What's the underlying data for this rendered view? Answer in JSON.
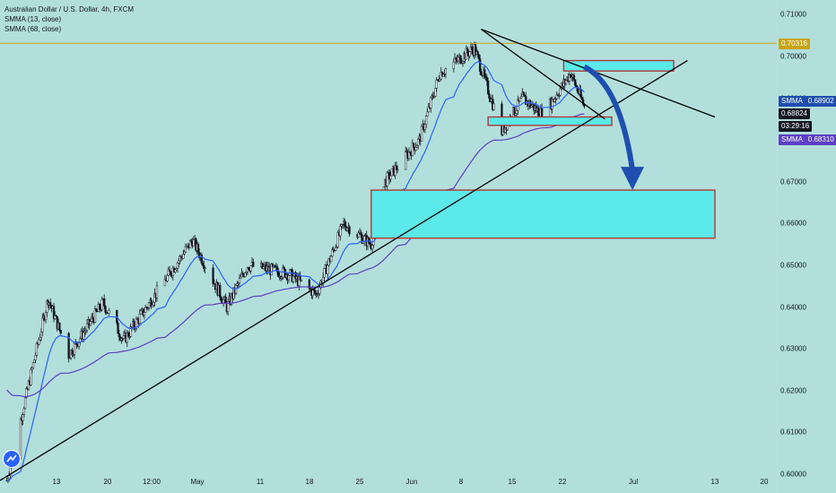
{
  "legend": {
    "symbol": "Australian Dollar / U.S. Dollar, 4h, FXCM",
    "ma1": "SMMA (13, close)",
    "ma2": "SMMA (68, close)"
  },
  "price_axis": {
    "ticks": [
      "0.71000",
      "0.70000",
      "0.69000",
      "0.68000",
      "0.67000",
      "0.66000",
      "0.65000",
      "0.64000",
      "0.63000",
      "0.62000",
      "0.61000",
      "0.60000"
    ],
    "tick_values": [
      0.71,
      0.7,
      0.69,
      0.68,
      0.67,
      0.66,
      0.65,
      0.64,
      0.63,
      0.62,
      0.61,
      0.6
    ]
  },
  "date_axis": {
    "labels": [
      "13",
      "20",
      "12:00",
      "May",
      "11",
      "18",
      "25",
      "Jun",
      "8",
      "15",
      "22",
      "Jul",
      "13",
      "20"
    ]
  },
  "badges": {
    "horizontal_level": "0.70316",
    "smma13_label": "SMMA",
    "smma13_value": "0.68902",
    "last_price": "0.68824",
    "countdown": "03:29:16",
    "smma68_label": "SMMA",
    "smma68_value": "0.68310"
  },
  "colors": {
    "background": "#b2dfdb",
    "candle": "#131722",
    "smma13": "#2962ff",
    "smma68": "#5b3fc4",
    "level_line": "#c8a415",
    "zone_fill": "#5ce9e9",
    "zone_border": "#b03a3a",
    "arrow": "#1e4fb0"
  },
  "chart_data": {
    "type": "candlestick",
    "series": [
      {
        "name": "SMMA (13, close)",
        "color": "#2962ff"
      },
      {
        "name": "SMMA (68, close)",
        "color": "#5b3fc4"
      }
    ],
    "price_range": [
      0.5955,
      0.7135
    ],
    "horizontal_level": 0.70316,
    "last_price": 0.68824,
    "smma13_last": 0.68902,
    "smma68_last": 0.6831,
    "key_closes": [
      {
        "x": "Apr 3",
        "price": 0.5985
      },
      {
        "x": "Apr 9",
        "price": 0.642
      },
      {
        "x": "Apr 12",
        "price": 0.6285
      },
      {
        "x": "Apr 17",
        "price": 0.641
      },
      {
        "x": "Apr 20",
        "price": 0.632
      },
      {
        "x": "Apr 30",
        "price": 0.656
      },
      {
        "x": "May 5",
        "price": 0.64
      },
      {
        "x": "May 8",
        "price": 0.65
      },
      {
        "x": "May 14",
        "price": 0.648
      },
      {
        "x": "May 18",
        "price": 0.643
      },
      {
        "x": "May 22",
        "price": 0.66
      },
      {
        "x": "May 26",
        "price": 0.655
      },
      {
        "x": "May 28",
        "price": 0.67
      },
      {
        "x": "Jun 2",
        "price": 0.68
      },
      {
        "x": "Jun 5",
        "price": 0.696
      },
      {
        "x": "Jun 10",
        "price": 0.702
      },
      {
        "x": "Jun 14",
        "price": 0.682
      },
      {
        "x": "Jun 17",
        "price": 0.69
      },
      {
        "x": "Jun 20",
        "price": 0.686
      },
      {
        "x": "Jun 24",
        "price": 0.696
      },
      {
        "x": "Jun 26",
        "price": 0.688
      }
    ],
    "zones": [
      {
        "from_date": "Jun 23",
        "to_date": "Jul 9",
        "top": 0.699,
        "bottom": 0.6965
      },
      {
        "from_date": "Jun 12",
        "to_date": "Jun 30",
        "top": 0.6855,
        "bottom": 0.6835
      },
      {
        "from_date": "May 26",
        "to_date": "Jul 15",
        "top": 0.668,
        "bottom": 0.6565
      }
    ],
    "trendlines": [
      {
        "from": [
          "Apr 2",
          0.5985
        ],
        "to": [
          "Jul 11",
          0.699
        ]
      },
      {
        "from": [
          "Jun 11",
          0.7065
        ],
        "to": [
          "Jun 29",
          0.685
        ]
      },
      {
        "from": [
          "Jun 11",
          0.7065
        ],
        "to": [
          "Jul 15",
          0.6855
        ]
      }
    ],
    "arrow": {
      "from": [
        "Jun 26",
        0.6975
      ],
      "to": [
        "Jul 3",
        0.668
      ]
    },
    "grid": false
  }
}
